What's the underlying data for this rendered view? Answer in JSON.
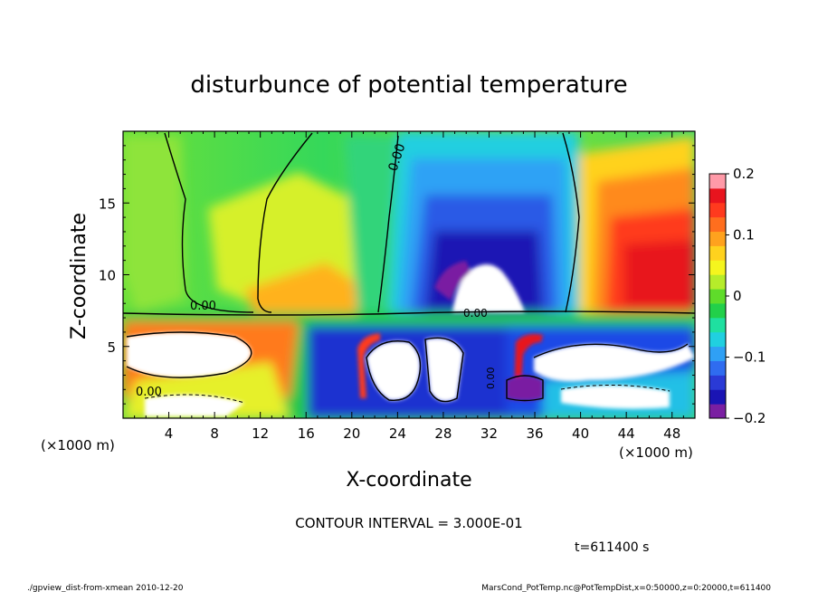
{
  "chart_data": {
    "type": "heatmap",
    "title": "disturbunce of potential temperature",
    "xlabel": "X-coordinate",
    "ylabel": "Z-coordinate",
    "x_unit_left": "(×1000 m)",
    "x_unit_right": "(×1000 m)",
    "xlim": [
      0,
      50
    ],
    "ylim": [
      0,
      20
    ],
    "x_ticks": [
      4,
      8,
      12,
      16,
      20,
      24,
      28,
      32,
      36,
      40,
      44,
      48
    ],
    "x_tick_labels": [
      "4",
      "8",
      "12",
      "16",
      "20",
      "24",
      "28",
      "32",
      "36",
      "40",
      "44",
      "48"
    ],
    "y_ticks": [
      5,
      10,
      15
    ],
    "y_tick_labels": [
      "5",
      "10",
      "15"
    ],
    "colorbar": {
      "min": -0.2,
      "max": 0.2,
      "ticks": [
        0.2,
        0.1,
        0,
        -0.1,
        -0.2
      ],
      "tick_labels": [
        "0.2",
        "0.1",
        "0",
        "−0.1",
        "−0.2"
      ],
      "colors": [
        "#7a1fa2",
        "#1a14b4",
        "#2a3ad6",
        "#2f6cf0",
        "#2fa0f5",
        "#20d0e0",
        "#1fe0a0",
        "#22d04a",
        "#5fdc2a",
        "#b6ec2a",
        "#f5f51e",
        "#ffd21e",
        "#ffa21e",
        "#ff6e1e",
        "#ff3a1e",
        "#e8141e",
        "#ff9aa8"
      ]
    },
    "contour_labels": [
      "0.00",
      "0.00",
      "0.00",
      "0.00",
      "0.00"
    ],
    "field_regions": [
      {
        "name": "upper-left green",
        "x": [
          0,
          22
        ],
        "z": [
          7.5,
          20
        ],
        "value": 0.0
      },
      {
        "name": "upper-mid yellow",
        "x": [
          10,
          22
        ],
        "z": [
          7.5,
          16
        ],
        "value": 0.06
      },
      {
        "name": "cold blue column",
        "x": [
          23,
          38
        ],
        "z": [
          7.5,
          18
        ],
        "value": -0.12
      },
      {
        "name": "purple core",
        "x": [
          27,
          33
        ],
        "z": [
          9,
          13
        ],
        "value": -0.2
      },
      {
        "name": "warm orange column",
        "x": [
          40,
          50
        ],
        "z": [
          7.5,
          20
        ],
        "value": 0.12
      },
      {
        "name": "warm red core",
        "x": [
          42,
          50
        ],
        "z": [
          9,
          15
        ],
        "value": 0.18
      },
      {
        "name": "turbulent lower layer",
        "x": [
          0,
          50
        ],
        "z": [
          0,
          7.5
        ],
        "value": 0.0
      }
    ],
    "annotation": "CONTOUR INTERVAL = 3.000E-01",
    "time_label": "t=611400 s",
    "footer_left": "./gpview_dist-from-xmean  2010-12-20",
    "footer_right": "MarsCond_PotTemp.nc@PotTempDist,x=0:50000,z=0:20000,t=611400",
    "grid": false
  }
}
